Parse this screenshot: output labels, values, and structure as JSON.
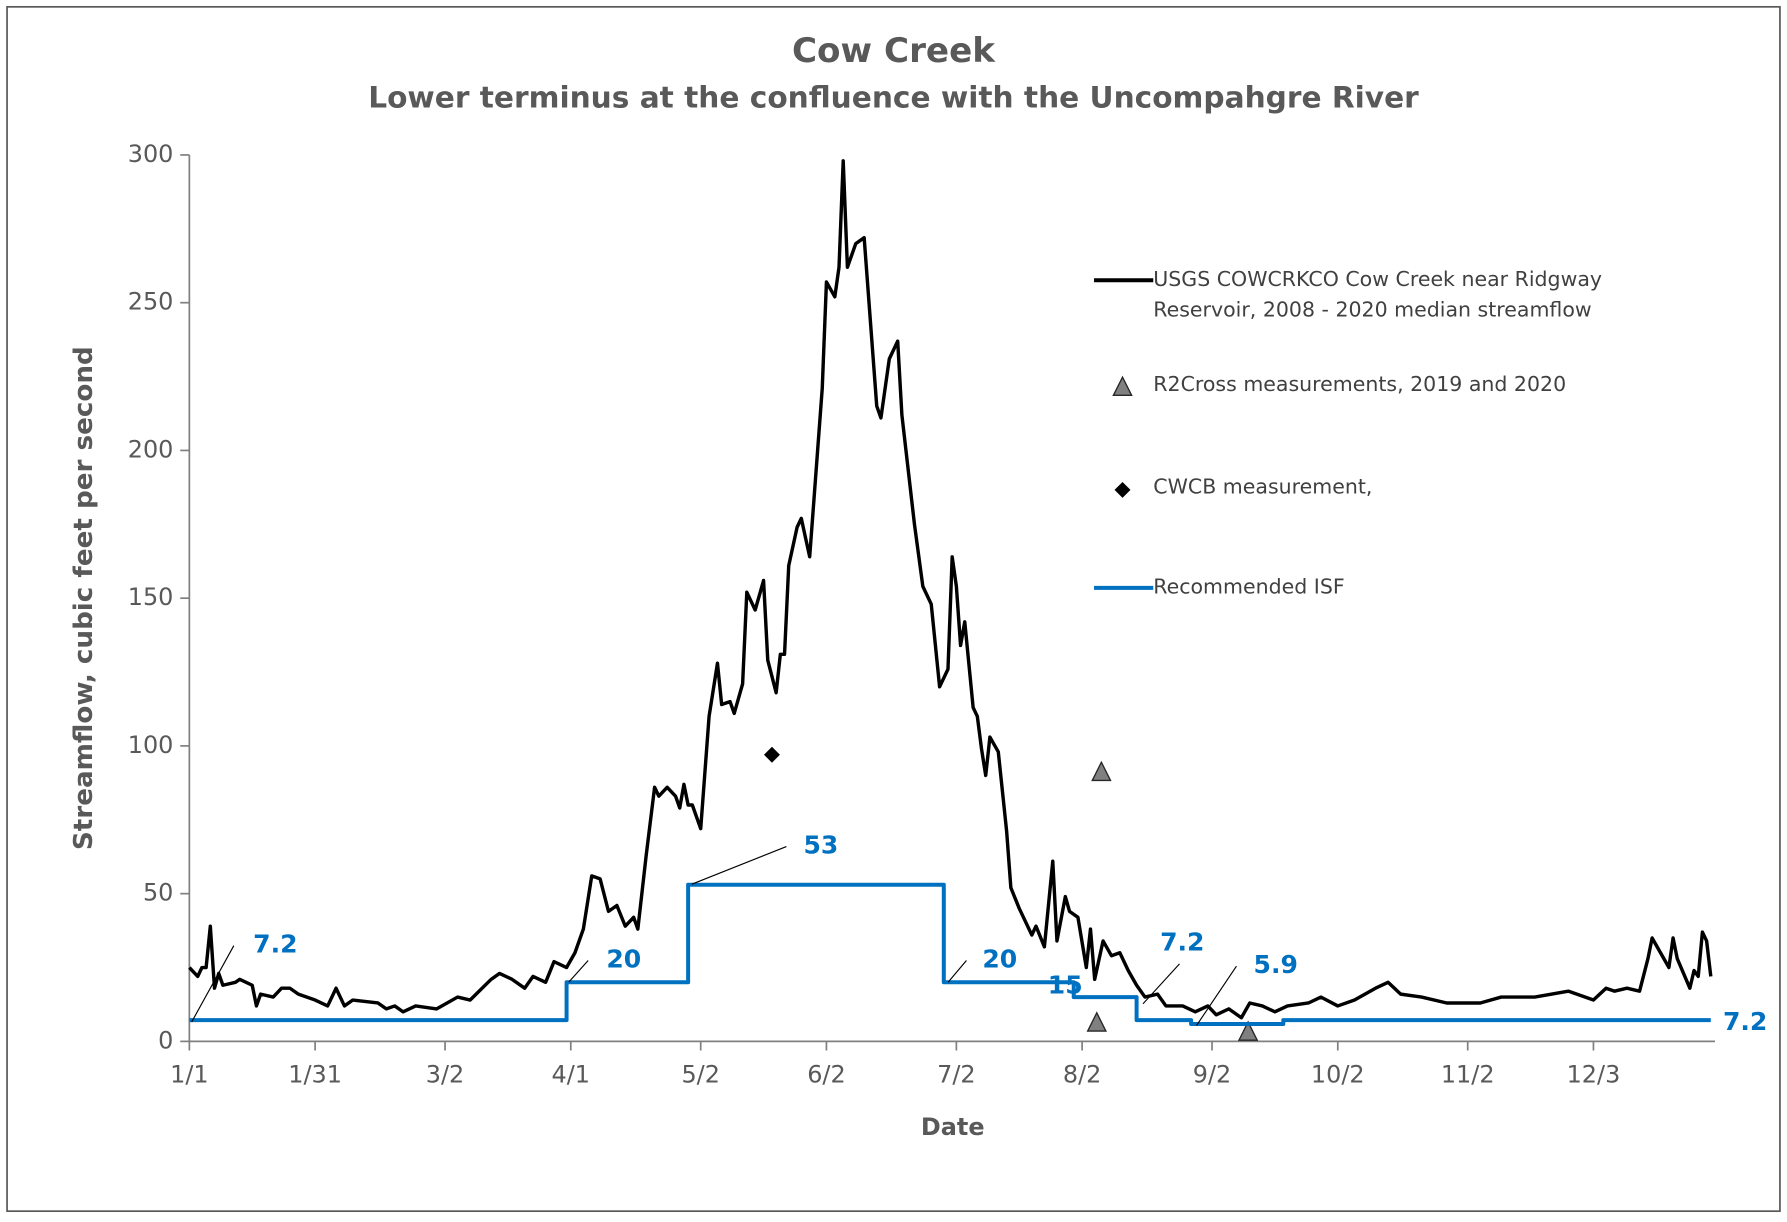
{
  "chart_data": {
    "type": "line",
    "title": "Cow Creek",
    "subtitle": "Lower terminus at the confluence with the Uncompahgre River",
    "x_label": "Date",
    "y_label": "Streamflow, cubic feet per second",
    "xlim": [
      0,
      364
    ],
    "xticks": [
      {
        "value": 0,
        "label": "1/1"
      },
      {
        "value": 30,
        "label": "1/31"
      },
      {
        "value": 61,
        "label": "3/2"
      },
      {
        "value": 91,
        "label": "4/1"
      },
      {
        "value": 122,
        "label": "5/2"
      },
      {
        "value": 152,
        "label": "6/2"
      },
      {
        "value": 183,
        "label": "7/2"
      },
      {
        "value": 213,
        "label": "8/2"
      },
      {
        "value": 244,
        "label": "9/2"
      },
      {
        "value": 274,
        "label": "10/2"
      },
      {
        "value": 305,
        "label": "11/2"
      },
      {
        "value": 335,
        "label": "12/3"
      }
    ],
    "ylim": [
      0,
      300
    ],
    "yticks": [
      0,
      50,
      100,
      150,
      200,
      250,
      300
    ],
    "grid": false,
    "series": [
      {
        "name": "USGS COWCRKCO Cow Creek near Ridgway Reservoir, 2008 - 2020 median streamflow",
        "type": "line",
        "color": "#000000",
        "x": [
          0,
          2,
          3,
          4,
          5,
          6,
          7,
          8,
          11,
          12,
          15,
          16,
          17,
          20,
          22,
          24,
          26,
          30,
          33,
          35,
          37,
          39,
          45,
          47,
          49,
          51,
          54,
          59,
          64,
          67,
          72,
          74,
          77,
          80,
          82,
          85,
          87,
          90,
          92,
          94,
          96,
          98,
          100,
          102,
          104,
          106,
          107,
          109,
          111,
          112,
          114,
          116,
          117,
          118,
          119,
          120,
          122,
          124,
          126,
          127,
          129,
          130,
          132,
          133,
          135,
          137,
          138,
          140,
          141,
          142,
          143,
          145,
          146,
          148,
          149,
          151,
          152,
          154,
          155,
          156,
          157,
          159,
          161,
          164,
          165,
          167,
          169,
          170,
          173,
          175,
          177,
          179,
          181,
          182,
          183,
          184,
          185,
          187,
          188,
          189,
          190,
          191,
          193,
          195,
          196,
          198,
          201,
          202,
          204,
          206,
          207,
          209,
          210,
          212,
          214,
          215,
          216,
          218,
          220,
          222,
          224,
          226,
          228,
          231,
          233,
          237,
          240,
          243,
          245,
          248,
          251,
          253,
          256,
          259,
          262,
          267,
          270,
          274,
          278,
          283,
          286,
          289,
          294,
          300,
          308,
          313,
          321,
          329,
          335,
          338,
          340,
          343,
          346,
          348,
          349,
          351,
          353,
          354,
          355,
          358,
          359,
          360,
          361,
          362,
          363
        ],
        "values": [
          25,
          22,
          25,
          25,
          39,
          18,
          23,
          19,
          20,
          21,
          19,
          12,
          16,
          15,
          18,
          18,
          16,
          14,
          12,
          18,
          12,
          14,
          13,
          11,
          12,
          10,
          12,
          11,
          15,
          14,
          21,
          23,
          21,
          18,
          22,
          20,
          27,
          25,
          30,
          38,
          56,
          55,
          44,
          46,
          39,
          42,
          38,
          63,
          86,
          83,
          86,
          83,
          79,
          87,
          80,
          80,
          72,
          110,
          128,
          114,
          115,
          111,
          121,
          152,
          146,
          156,
          129,
          118,
          131,
          131,
          161,
          174,
          177,
          164,
          183,
          221,
          257,
          252,
          262,
          298,
          262,
          270,
          272,
          215,
          211,
          231,
          237,
          212,
          175,
          154,
          148,
          120,
          126,
          164,
          154,
          134,
          142,
          113,
          110,
          99,
          90,
          103,
          98,
          71,
          52,
          45,
          36,
          39,
          32,
          61,
          34,
          49,
          44,
          42,
          25,
          38,
          21,
          34,
          29,
          30,
          24,
          19,
          15,
          16,
          12,
          12,
          10,
          12,
          9,
          11,
          8,
          13,
          12,
          10,
          12,
          13,
          15,
          12,
          14,
          18,
          20,
          16,
          15,
          13,
          13,
          15,
          15,
          17,
          14,
          18,
          17,
          18,
          17,
          28,
          35,
          30,
          25,
          35,
          28,
          18,
          24,
          22,
          37,
          34,
          22
        ]
      },
      {
        "name": "R2Cross measurements, 2019 and 2020",
        "type": "scatter",
        "marker": "triangle",
        "color": "#808080",
        "x": [
          216.5,
          217.6,
          252.6
        ],
        "values": [
          6.2,
          91,
          3.1
        ]
      },
      {
        "name": "CWCB measurement,",
        "type": "scatter",
        "marker": "diamond",
        "color": "#000000",
        "x": [
          139
        ],
        "values": [
          97
        ]
      },
      {
        "name": "Recommended ISF",
        "type": "line",
        "color": "#0070c0",
        "x": [
          0,
          90,
          90,
          119,
          119,
          180,
          180,
          211,
          211,
          226,
          226,
          239,
          239,
          261,
          261,
          363
        ],
        "values": [
          7.2,
          7.2,
          20,
          20,
          53,
          53,
          20,
          20,
          15,
          15,
          7.2,
          7.2,
          5.9,
          5.9,
          7.2,
          7.2
        ]
      }
    ],
    "annotations": [
      7.2,
      20,
      53,
      20,
      15,
      7.2,
      5.9,
      7.2
    ]
  }
}
